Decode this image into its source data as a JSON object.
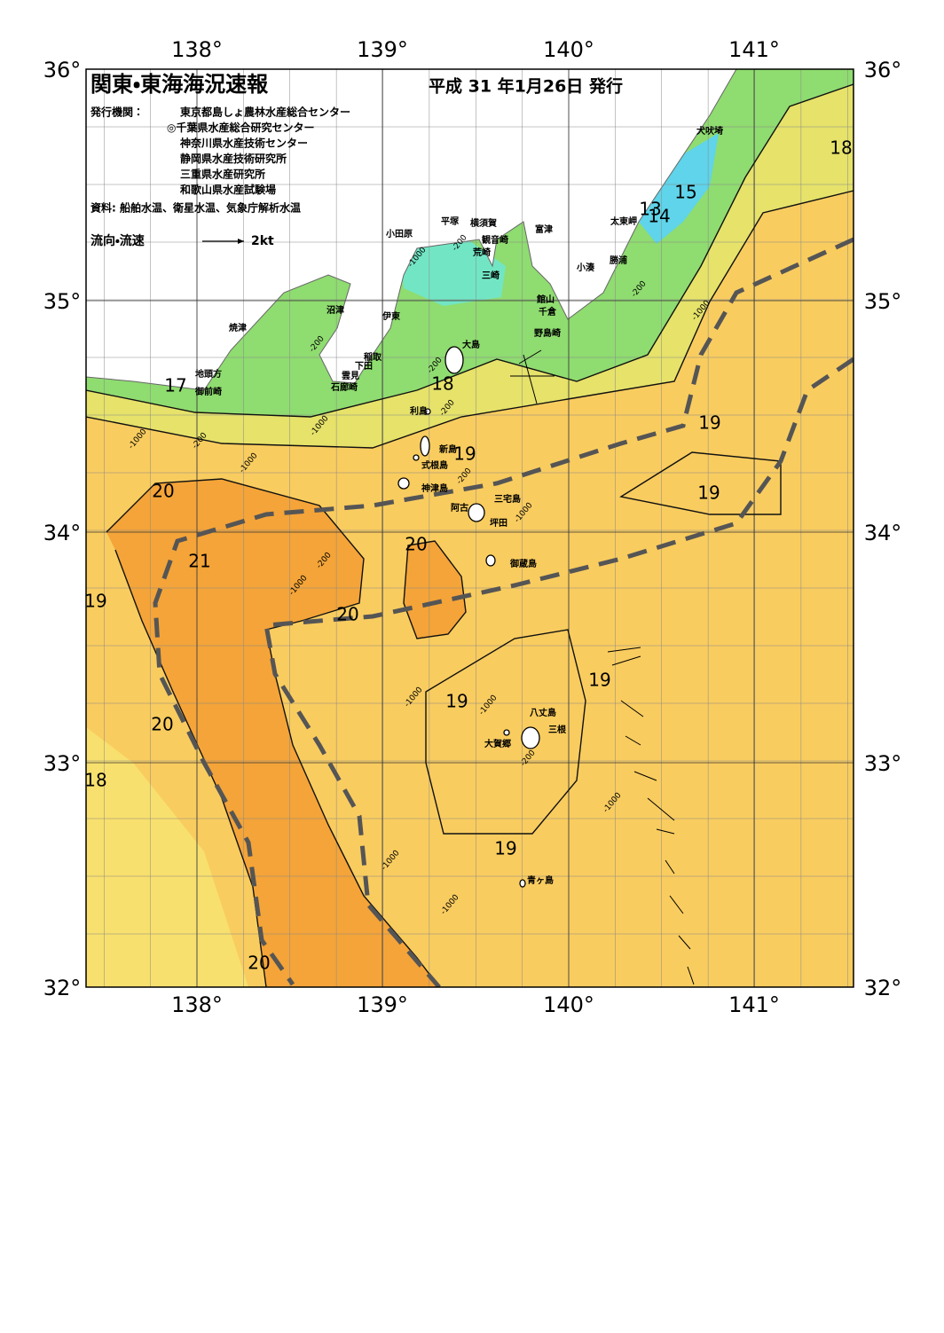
{
  "header": {
    "title": "関東・東海海況速報",
    "date": "平成 31 年1月26日 発行",
    "agencies_label": "発行機関：",
    "agencies": [
      "東京都島しょ農林水産総合センター",
      "◎千葉県水産総合研究センター",
      "神奈川県水産技術センター",
      "静岡県水産技術研究所",
      "三重県水産研究所",
      "和歌山県水産試験場"
    ],
    "source": "資料: 船舶水温、衛星水温、気象庁解析水温",
    "legend_label": "流向・流速",
    "legend_scale": "2kt"
  },
  "axes": {
    "longitudes": [
      "138°",
      "139°",
      "140°",
      "141°"
    ],
    "latitudes": [
      "36°",
      "35°",
      "34°",
      "33°",
      "32°"
    ]
  },
  "places": [
    "犬吠埼",
    "太東岬",
    "勝浦",
    "小湊",
    "館山",
    "千倉",
    "野島崎",
    "富津",
    "横須賀",
    "観音崎",
    "荒崎",
    "三崎",
    "平塚",
    "小田原",
    "伊東",
    "沼津",
    "焼津",
    "稲取",
    "下田",
    "雲見",
    "石廊崎",
    "地頭方",
    "御前崎",
    "大島",
    "利島",
    "新島",
    "式根島",
    "神津島",
    "三宅島",
    "阿古",
    "坪田",
    "御蔵島",
    "八丈島",
    "三根",
    "大賀郷",
    "青ヶ島"
  ],
  "isotherm_labels": [
    "18",
    "15",
    "13",
    "14",
    "17",
    "18",
    "19",
    "19",
    "19",
    "20",
    "20",
    "21",
    "19",
    "20",
    "19",
    "19",
    "20",
    "18",
    "19",
    "20"
  ],
  "depth_labels": [
    "-1000",
    "-200",
    "-200",
    "-1000",
    "-200",
    "-200",
    "-200",
    "-1000",
    "-1000",
    "-200",
    "-1000",
    "-200",
    "-1000",
    "-200",
    "-1000",
    "-1000",
    "-1000",
    "-200",
    "-1000",
    "-1000",
    "-1000"
  ]
}
